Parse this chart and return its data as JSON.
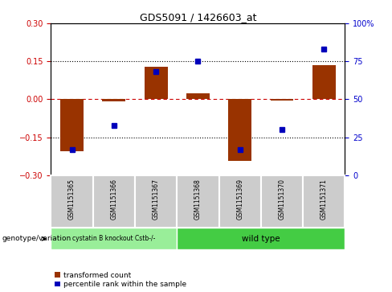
{
  "title": "GDS5091 / 1426603_at",
  "samples": [
    "GSM1151365",
    "GSM1151366",
    "GSM1151367",
    "GSM1151368",
    "GSM1151369",
    "GSM1151370",
    "GSM1151371"
  ],
  "red_values": [
    -0.205,
    -0.008,
    0.13,
    0.025,
    -0.245,
    -0.006,
    0.135
  ],
  "blue_values_pct": [
    17,
    33,
    68,
    75,
    17,
    30,
    83
  ],
  "ylim_left": [
    -0.3,
    0.3
  ],
  "ylim_right": [
    0,
    100
  ],
  "yticks_left": [
    -0.3,
    -0.15,
    0,
    0.15,
    0.3
  ],
  "yticks_right": [
    0,
    25,
    50,
    75,
    100
  ],
  "ytick_labels_right": [
    "0",
    "25",
    "50",
    "75",
    "100%"
  ],
  "hlines_dotted": [
    0.15,
    -0.15
  ],
  "hline_dashed": 0,
  "red_color": "#993300",
  "blue_color": "#0000bb",
  "red_dashed_color": "#cc0000",
  "group1_label": "cystatin B knockout Cstb-/-",
  "group2_label": "wild type",
  "group1_color": "#99ee99",
  "group2_color": "#44cc44",
  "group1_samples": [
    0,
    1,
    2
  ],
  "group2_samples": [
    3,
    4,
    5,
    6
  ],
  "genotype_label": "genotype/variation",
  "legend1": "transformed count",
  "legend2": "percentile rank within the sample",
  "bar_width": 0.55,
  "left_tick_color": "#cc0000",
  "right_tick_color": "#0000cc",
  "sample_box_color": "#cccccc",
  "sample_box_edge": "#999999"
}
